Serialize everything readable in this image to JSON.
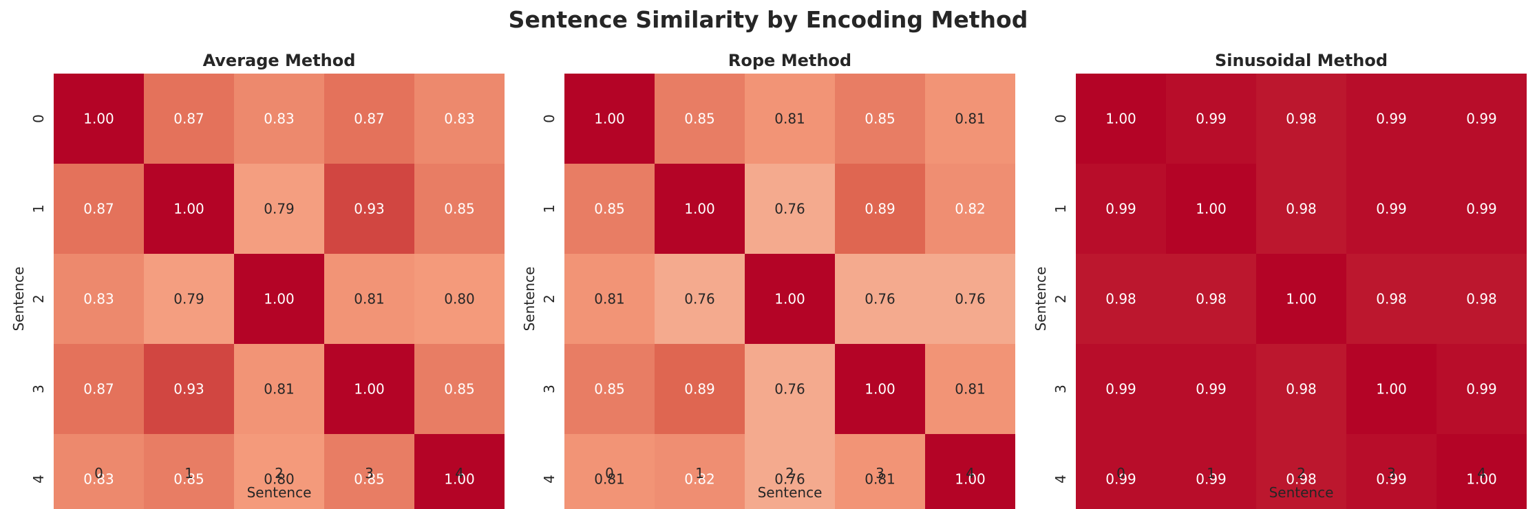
{
  "figure": {
    "title": "Sentence Similarity by Encoding Method"
  },
  "chart_data": [
    {
      "type": "heatmap",
      "title": "Average Method",
      "xlabel": "Sentence",
      "ylabel": "Sentence",
      "x_ticks": [
        "0",
        "1",
        "2",
        "3",
        "4"
      ],
      "y_ticks": [
        "0",
        "1",
        "2",
        "3",
        "4"
      ],
      "values": [
        [
          1.0,
          0.87,
          0.83,
          0.87,
          0.83
        ],
        [
          0.87,
          1.0,
          0.79,
          0.93,
          0.85
        ],
        [
          0.83,
          0.79,
          1.0,
          0.81,
          0.8
        ],
        [
          0.87,
          0.93,
          0.81,
          1.0,
          0.85
        ],
        [
          0.83,
          0.85,
          0.8,
          0.85,
          1.0
        ]
      ],
      "colormap": "coolwarm",
      "colorbar": false
    },
    {
      "type": "heatmap",
      "title": "Rope Method",
      "xlabel": "Sentence",
      "ylabel": "Sentence",
      "x_ticks": [
        "0",
        "1",
        "2",
        "3",
        "4"
      ],
      "y_ticks": [
        "0",
        "1",
        "2",
        "3",
        "4"
      ],
      "values": [
        [
          1.0,
          0.85,
          0.81,
          0.85,
          0.81
        ],
        [
          0.85,
          1.0,
          0.76,
          0.89,
          0.82
        ],
        [
          0.81,
          0.76,
          1.0,
          0.76,
          0.76
        ],
        [
          0.85,
          0.89,
          0.76,
          1.0,
          0.81
        ],
        [
          0.81,
          0.82,
          0.76,
          0.81,
          1.0
        ]
      ],
      "colormap": "coolwarm",
      "colorbar": false
    },
    {
      "type": "heatmap",
      "title": "Sinusoidal Method",
      "xlabel": "Sentence",
      "ylabel": "Sentence",
      "x_ticks": [
        "0",
        "1",
        "2",
        "3",
        "4"
      ],
      "y_ticks": [
        "0",
        "1",
        "2",
        "3",
        "4"
      ],
      "values": [
        [
          1.0,
          0.99,
          0.98,
          0.99,
          0.99
        ],
        [
          0.99,
          1.0,
          0.98,
          0.99,
          0.99
        ],
        [
          0.98,
          0.98,
          1.0,
          0.98,
          0.98
        ],
        [
          0.99,
          0.99,
          0.98,
          1.0,
          0.99
        ],
        [
          0.99,
          0.99,
          0.98,
          0.99,
          1.0
        ]
      ],
      "colormap": "coolwarm",
      "colorbar": false
    }
  ]
}
